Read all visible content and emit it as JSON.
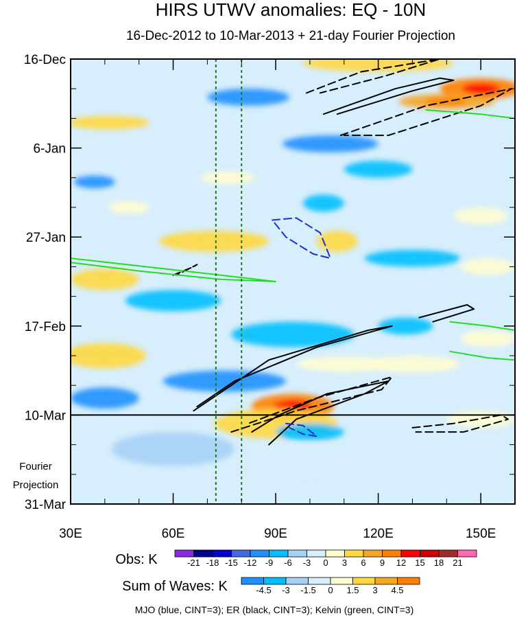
{
  "chart_data": {
    "type": "heatmap",
    "title": "HIRS UTWV anomalies: EQ - 10N",
    "subtitle": "16-Dec-2012 to 10-Mar-2013 + 21-day Fourier Projection",
    "x_ticks": [
      {
        "value": 30,
        "label": "30E"
      },
      {
        "value": 60,
        "label": "60E"
      },
      {
        "value": 90,
        "label": "90E"
      },
      {
        "value": 120,
        "label": "120E"
      },
      {
        "value": 150,
        "label": "150E"
      }
    ],
    "xlim": [
      30,
      160
    ],
    "y_ticks": [
      {
        "value": 0,
        "label": "16-Dec"
      },
      {
        "value": 21,
        "label": "6-Jan"
      },
      {
        "value": 42,
        "label": "27-Jan"
      },
      {
        "value": 63,
        "label": "17-Feb"
      },
      {
        "value": 84,
        "label": "10-Mar"
      },
      {
        "value": 105,
        "label": "31-Mar"
      }
    ],
    "ylim": [
      0,
      105
    ],
    "y_units": "days since 16-Dec-2012",
    "projection_start_day": 84,
    "projection_label": [
      "Fourier",
      "Projection"
    ],
    "reference_lines_lon": [
      72.5,
      80
    ],
    "obs_colorbar": {
      "label": "Obs: K",
      "levels": [
        "-21",
        "-18",
        "-15",
        "-12",
        "-9",
        "-6",
        "-3",
        "0",
        "3",
        "6",
        "9",
        "12",
        "15",
        "18",
        "21"
      ],
      "colors": [
        "#8a2be2",
        "#00008b",
        "#0000cd",
        "#4169e1",
        "#1e90ff",
        "#00bfff",
        "#a7d0f5",
        "#d7eefc",
        "#fffdd0",
        "#ffd740",
        "#f5a623",
        "#ff7f00",
        "#ff0000",
        "#cd0000",
        "#a52a2a",
        "#ff69b4"
      ]
    },
    "waves_colorbar": {
      "label": "Sum of Waves: K",
      "levels": [
        "-4.5",
        "-3",
        "-1.5",
        "0",
        "1.5",
        "3",
        "4.5"
      ],
      "colors": [
        "#1e90ff",
        "#00bfff",
        "#a7d0f5",
        "#d7eefc",
        "#fffdd0",
        "#ffd740",
        "#f5a623",
        "#ff7f00"
      ]
    },
    "legend_note": "MJO (blue, CINT=3); ER (black, CINT=3); Kelvin (green, CINT=3)",
    "field_blobs": [
      {
        "lon": 120,
        "day": 1,
        "rx": 22,
        "ry": 2.0,
        "val": 6
      },
      {
        "lon": 150,
        "day": 7,
        "rx": 12,
        "ry": 2.5,
        "val": 12
      },
      {
        "lon": 140,
        "day": 10,
        "rx": 14,
        "ry": 1.8,
        "val": 9
      },
      {
        "lon": 41,
        "day": 15,
        "rx": 12,
        "ry": 1.6,
        "val": 7
      },
      {
        "lon": 72,
        "day": 43,
        "rx": 16,
        "ry": 2.5,
        "val": 7
      },
      {
        "lon": 40,
        "day": 52,
        "rx": 10,
        "ry": 2.5,
        "val": 6
      },
      {
        "lon": 40,
        "day": 70,
        "rx": 12,
        "ry": 3.0,
        "val": 6
      },
      {
        "lon": 108,
        "day": 43,
        "rx": 6,
        "ry": 2.5,
        "val": 6
      },
      {
        "lon": 152,
        "day": 49,
        "rx": 8,
        "ry": 2.0,
        "val": 5
      },
      {
        "lon": 95,
        "day": 82,
        "rx": 12,
        "ry": 3.0,
        "val": 12
      },
      {
        "lon": 90,
        "day": 86,
        "rx": 18,
        "ry": 3.5,
        "val": 6
      },
      {
        "lon": 130,
        "day": 72,
        "rx": 14,
        "ry": 2.0,
        "val": 5
      },
      {
        "lon": 110,
        "day": 72,
        "rx": 14,
        "ry": 1.8,
        "val": 4
      },
      {
        "lon": 152,
        "day": 66,
        "rx": 8,
        "ry": 2.0,
        "val": 5
      },
      {
        "lon": 76,
        "day": 28,
        "rx": 8,
        "ry": 1.5,
        "val": 4
      },
      {
        "lon": 47,
        "day": 35,
        "rx": 6,
        "ry": 1.5,
        "val": 4
      },
      {
        "lon": 150,
        "day": 37,
        "rx": 8,
        "ry": 2.0,
        "val": 4
      },
      {
        "lon": 100,
        "day": 95,
        "rx": 22,
        "ry": 4.0,
        "val": 2
      },
      {
        "lon": 150,
        "day": 85,
        "rx": 10,
        "ry": 2.0,
        "val": 3
      },
      {
        "lon": 82,
        "day": 9,
        "rx": 12,
        "ry": 2.0,
        "val": -7
      },
      {
        "lon": 106,
        "day": 20,
        "rx": 14,
        "ry": 2.0,
        "val": -7
      },
      {
        "lon": 37,
        "day": 29,
        "rx": 6,
        "ry": 1.5,
        "val": -7
      },
      {
        "lon": 120,
        "day": 26,
        "rx": 10,
        "ry": 2.0,
        "val": -6
      },
      {
        "lon": 130,
        "day": 47,
        "rx": 14,
        "ry": 2.0,
        "val": -6
      },
      {
        "lon": 95,
        "day": 65,
        "rx": 18,
        "ry": 3.0,
        "val": -6
      },
      {
        "lon": 75,
        "day": 76,
        "rx": 18,
        "ry": 2.5,
        "val": -7
      },
      {
        "lon": 40,
        "day": 80,
        "rx": 10,
        "ry": 2.5,
        "val": -7
      },
      {
        "lon": 128,
        "day": 63,
        "rx": 8,
        "ry": 2.0,
        "val": -5
      },
      {
        "lon": 104,
        "day": 34,
        "rx": 6,
        "ry": 2.0,
        "val": -5
      },
      {
        "lon": 60,
        "day": 57,
        "rx": 14,
        "ry": 2.5,
        "val": -5
      },
      {
        "lon": 100,
        "day": 88,
        "rx": 10,
        "ry": 2.0,
        "val": -4
      },
      {
        "lon": 60,
        "day": 92,
        "rx": 18,
        "ry": 4.0,
        "val": -2
      }
    ],
    "contours": [
      {
        "wave": "ER",
        "dash": false,
        "points": [
          [
            88,
            91
          ],
          [
            96,
            85
          ],
          [
            116,
            79
          ],
          [
            123,
            76
          ],
          [
            105,
            79
          ],
          [
            91,
            84
          ],
          [
            83,
            88
          ]
        ]
      },
      {
        "wave": "ER",
        "dash": false,
        "points": [
          [
            66,
            83
          ],
          [
            88,
            71
          ],
          [
            117,
            64
          ],
          [
            124,
            63
          ],
          [
            102,
            68
          ],
          [
            78,
            76
          ],
          [
            67,
            82
          ]
        ]
      },
      {
        "wave": "ER",
        "dash": false,
        "points": [
          [
            104,
            13
          ],
          [
            125,
            7
          ],
          [
            138,
            4.5
          ],
          [
            142,
            5
          ],
          [
            130,
            7.5
          ],
          [
            108,
            13
          ]
        ]
      },
      {
        "wave": "ER",
        "dash": false,
        "points": [
          [
            132,
            61
          ],
          [
            146,
            58
          ],
          [
            148,
            59
          ],
          [
            136,
            62
          ]
        ]
      },
      {
        "wave": "ER",
        "dash": true,
        "points": [
          [
            77,
            88
          ],
          [
            96,
            83
          ],
          [
            121,
            78
          ],
          [
            124,
            75
          ],
          [
            102,
            80
          ],
          [
            82,
            86
          ]
        ]
      },
      {
        "wave": "ER",
        "dash": true,
        "points": [
          [
            130,
            87
          ],
          [
            142,
            86
          ],
          [
            156,
            84
          ],
          [
            158,
            85
          ],
          [
            145,
            88
          ],
          [
            131,
            88
          ]
        ]
      },
      {
        "wave": "ER",
        "dash": true,
        "points": [
          [
            99,
            8
          ],
          [
            115,
            3
          ],
          [
            138,
            0
          ],
          [
            122,
            4
          ],
          [
            103,
            8
          ]
        ]
      },
      {
        "wave": "ER",
        "dash": true,
        "points": [
          [
            109,
            18
          ],
          [
            134,
            11
          ],
          [
            159,
            7
          ],
          [
            150,
            11
          ],
          [
            123,
            18
          ],
          [
            110,
            18
          ]
        ]
      },
      {
        "wave": "ER",
        "dash": true,
        "points": [
          [
            60,
            51
          ],
          [
            66,
            49
          ],
          [
            67,
            48.5
          ],
          [
            61,
            51
          ]
        ]
      },
      {
        "wave": "MJO",
        "dash": true,
        "points": [
          [
            89,
            38
          ],
          [
            96,
            37.5
          ],
          [
            103,
            41
          ],
          [
            106,
            47
          ],
          [
            101,
            46
          ],
          [
            93,
            42
          ],
          [
            89,
            38
          ]
        ]
      },
      {
        "wave": "MJO",
        "dash": true,
        "points": [
          [
            93,
            86
          ],
          [
            98,
            86.5
          ],
          [
            102,
            89
          ],
          [
            98,
            88.5
          ],
          [
            94,
            87
          ]
        ]
      },
      {
        "wave": "Kelvin",
        "dash": false,
        "points": [
          [
            30,
            47
          ],
          [
            52,
            49
          ],
          [
            74,
            51
          ],
          [
            90,
            52.5
          ],
          [
            74,
            52
          ],
          [
            50,
            50
          ],
          [
            30,
            48
          ]
        ]
      },
      {
        "wave": "Kelvin",
        "dash": false,
        "points": [
          [
            134,
            12
          ],
          [
            150,
            13
          ],
          [
            160,
            14
          ]
        ]
      },
      {
        "wave": "Kelvin",
        "dash": false,
        "points": [
          [
            141,
            69
          ],
          [
            152,
            70.5
          ],
          [
            160,
            71
          ]
        ]
      },
      {
        "wave": "Kelvin",
        "dash": false,
        "points": [
          [
            141,
            62
          ],
          [
            152,
            63
          ],
          [
            160,
            64
          ]
        ]
      }
    ]
  }
}
